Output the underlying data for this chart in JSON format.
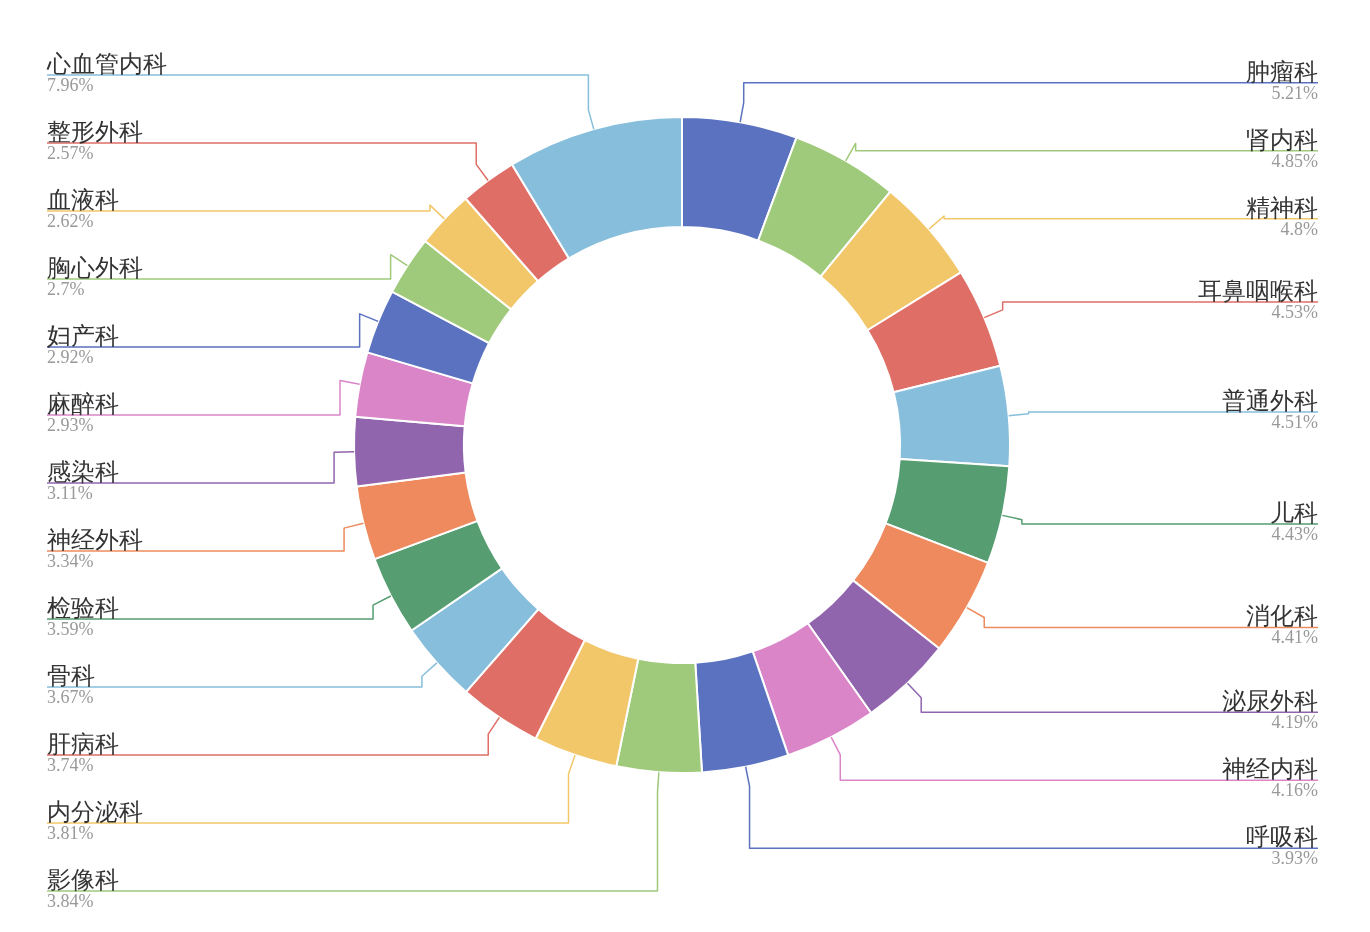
{
  "chart_data": {
    "type": "donut",
    "categories": [
      "肿瘤科",
      "肾内科",
      "精神科",
      "耳鼻咽喉科",
      "普通外科",
      "儿科",
      "消化科",
      "泌尿外科",
      "神经内科",
      "呼吸科",
      "影像科",
      "内分泌科",
      "肝病科",
      "骨科",
      "检验科",
      "神经外科",
      "感染科",
      "麻醉科",
      "妇产科",
      "胸心外科",
      "血液科",
      "整形外科",
      "心血管内科"
    ],
    "values": [
      5.21,
      4.85,
      4.8,
      4.53,
      4.51,
      4.43,
      4.41,
      4.19,
      4.16,
      3.93,
      3.84,
      3.81,
      3.74,
      3.67,
      3.59,
      3.34,
      3.11,
      2.93,
      2.92,
      2.7,
      2.62,
      2.57,
      7.96
    ],
    "value_labels": [
      "5.21%",
      "4.85%",
      "4.8%",
      "4.53%",
      "4.51%",
      "4.43%",
      "4.41%",
      "4.19%",
      "4.16%",
      "3.93%",
      "3.84%",
      "3.81%",
      "3.74%",
      "3.67%",
      "3.59%",
      "3.34%",
      "3.11%",
      "2.93%",
      "2.92%",
      "2.7%",
      "2.62%",
      "2.57%",
      "7.96%"
    ],
    "colors": [
      "#5a72c0",
      "#9fca7b",
      "#f2c76a",
      "#df6e67",
      "#87bedc",
      "#569d72",
      "#ee8a5d",
      "#9065ae",
      "#da85c8",
      "#5a72c0",
      "#9fca7b",
      "#f2c76a",
      "#df6e67",
      "#87bedc",
      "#569d72",
      "#ee8a5d",
      "#9065ae",
      "#da85c8",
      "#5a72c0",
      "#9fca7b",
      "#f2c76a",
      "#df6e67",
      "#87bedc"
    ],
    "legend": false
  }
}
